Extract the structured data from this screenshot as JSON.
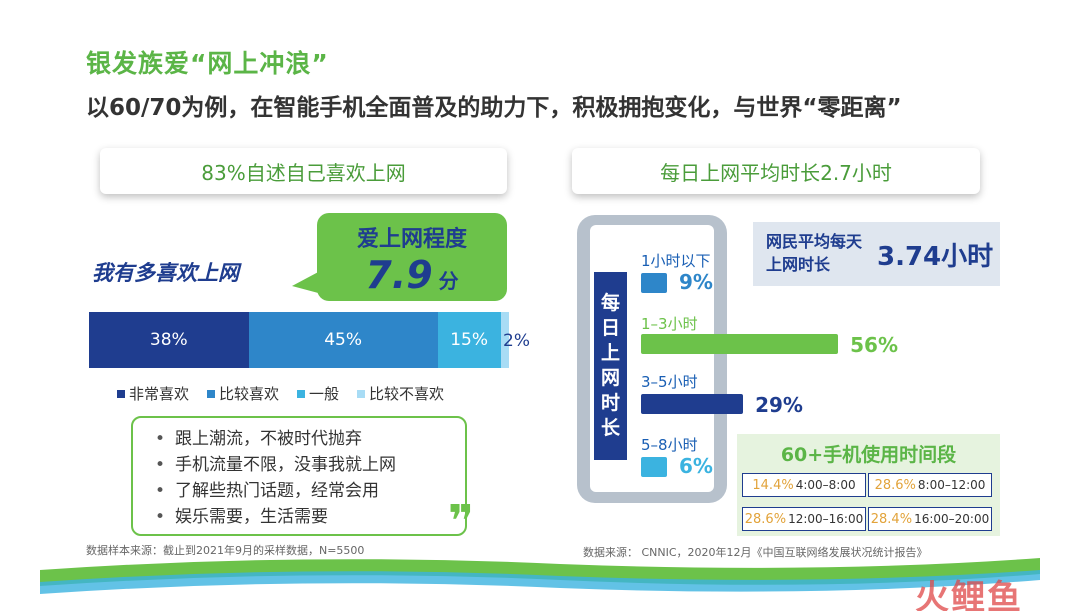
{
  "title": "银发族爱“网上冲浪”",
  "subtitle": "以60/70为例，在智能手机全面普及的助力下，积极拥抱变化，与世界“零距离”",
  "left": {
    "header": "83%自述自己喜欢上网",
    "like_label": "我有多喜欢上网",
    "bubble": {
      "title": "爱上网程度",
      "value": "7.9",
      "unit": "分"
    },
    "reasons": [
      "跟上潮流，不被时代抛弃",
      "手机流量不限，没事我就上网",
      "了解些热门话题，经常会用",
      "娱乐需要，生活需要"
    ],
    "quote_mark": "❞",
    "source": "数据样本来源：截止到2021年9月的采样数据，N=5500"
  },
  "right": {
    "header": "每日上网平均时长2.7小时",
    "phone_label": [
      "每",
      "日",
      "上",
      "网",
      "时",
      "长"
    ],
    "avg_label": "网民平均每天上网时长",
    "avg_value": "3.74小时",
    "period_title": "60+手机使用时间段",
    "periods": [
      {
        "pct": "14.4%",
        "range": "4:00–8:00"
      },
      {
        "pct": "28.6%",
        "range": "8:00–12:00"
      },
      {
        "pct": "28.6%",
        "range": "12:00–16:00"
      },
      {
        "pct": "28.4%",
        "range": "16:00–20:00"
      }
    ],
    "source": "数据来源： CNNIC，2020年12月《中国互联网络发展状况统计报告》"
  },
  "colors": {
    "very_like": "#1f3d8f",
    "like": "#2e86c9",
    "neutral": "#3bb3e0",
    "dislike": "#a8dcf5",
    "green": "#6cc24a"
  },
  "watermark": "火鲤鱼",
  "chart_data": [
    {
      "type": "bar",
      "orientation": "horizontal-stacked",
      "title": "我有多喜欢上网",
      "series": [
        {
          "name": "非常喜欢",
          "values": [
            38
          ],
          "label": "38%"
        },
        {
          "name": "比较喜欢",
          "values": [
            45
          ],
          "label": "45%"
        },
        {
          "name": "一般",
          "values": [
            15
          ],
          "label": "15%"
        },
        {
          "name": "比较不喜欢",
          "values": [
            2
          ],
          "label": "2%"
        }
      ],
      "legend": "bottom"
    },
    {
      "type": "bar",
      "orientation": "horizontal",
      "title": "每日上网时长",
      "categories": [
        "1小时以下",
        "1–3小时",
        "3–5小时",
        "5–8小时"
      ],
      "values": [
        9,
        56,
        29,
        6
      ],
      "labels": [
        "9%",
        "56%",
        "29%",
        "6%"
      ],
      "colors": [
        "#2e86c9",
        "#6cc24a",
        "#1f3d8f",
        "#3bb3e0"
      ]
    }
  ]
}
